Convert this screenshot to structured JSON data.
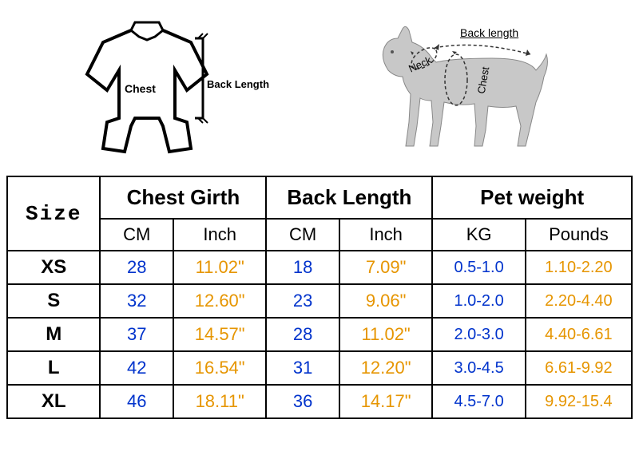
{
  "diagrams": {
    "shirt": {
      "chest_label": "Chest",
      "back_length_label": "Back Length"
    },
    "dog": {
      "back_label": "Back length",
      "neck_label": "Neck",
      "chest_label": "Chest"
    }
  },
  "table": {
    "headers": {
      "size": "Size",
      "chest_girth": "Chest Girth",
      "back_length": "Back Length",
      "pet_weight": "Pet weight"
    },
    "sub_headers": {
      "cm": "CM",
      "inch": "Inch",
      "kg": "KG",
      "pounds": "Pounds"
    },
    "rows": [
      {
        "size": "XS",
        "chest_cm": "28",
        "chest_in": "11.02\"",
        "back_cm": "18",
        "back_in": "7.09\"",
        "kg": "0.5-1.0",
        "lb": "1.10-2.20"
      },
      {
        "size": "S",
        "chest_cm": "32",
        "chest_in": "12.60\"",
        "back_cm": "23",
        "back_in": "9.06\"",
        "kg": "1.0-2.0",
        "lb": "2.20-4.40"
      },
      {
        "size": "M",
        "chest_cm": "37",
        "chest_in": "14.57\"",
        "back_cm": "28",
        "back_in": "11.02\"",
        "kg": "2.0-3.0",
        "lb": "4.40-6.61"
      },
      {
        "size": "L",
        "chest_cm": "42",
        "chest_in": "16.54\"",
        "back_cm": "31",
        "back_in": "12.20\"",
        "kg": "3.0-4.5",
        "lb": "6.61-9.92"
      },
      {
        "size": "XL",
        "chest_cm": "46",
        "chest_in": "18.11\"",
        "back_cm": "36",
        "back_in": "14.17\"",
        "kg": "4.5-7.0",
        "lb": "9.92-15.4"
      }
    ],
    "colors": {
      "cm": "#0033cc",
      "inch": "#e69500",
      "kg": "#0033cc",
      "pounds": "#e69500",
      "border": "#000000",
      "background": "#ffffff"
    }
  }
}
